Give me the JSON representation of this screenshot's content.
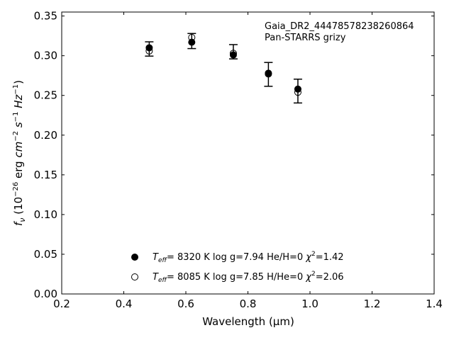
{
  "chart_data": {
    "type": "scatter",
    "title": "",
    "xlabel": "Wavelength (μm)",
    "ylabel": "f_ν (10^-26 erg cm^-2 s^-1 Hz^-1)",
    "xlim": [
      0.2,
      1.4
    ],
    "ylim": [
      0.0,
      0.355
    ],
    "xticks": [
      "0.2",
      "0.4",
      "0.6",
      "0.8",
      "1.0",
      "1.2",
      "1.4"
    ],
    "yticks": [
      "0.00",
      "0.05",
      "0.10",
      "0.15",
      "0.20",
      "0.25",
      "0.30",
      "0.35"
    ],
    "grid": false,
    "annotations": [
      "Gaia_DR2_4447857823826086​4",
      "Pan-STARRS grizy"
    ],
    "observed": {
      "x": [
        0.482,
        0.619,
        0.753,
        0.866,
        0.961
      ],
      "y": [
        0.3085,
        0.3185,
        0.305,
        0.2765,
        0.2555
      ],
      "yerr": [
        0.009,
        0.0095,
        0.009,
        0.015,
        0.015
      ]
    },
    "series": [
      {
        "name": "T_eff= 8320 K log g=7.94 He/H=0 χ²=1.42",
        "marker": "filled-circle",
        "x": [
          0.482,
          0.619,
          0.753,
          0.866,
          0.961
        ],
        "y": [
          0.31,
          0.317,
          0.301,
          0.278,
          0.258
        ]
      },
      {
        "name": "T_eff= 8085 K log g=7.85 H/He=0 χ²=2.06",
        "marker": "open-circle",
        "x": [
          0.482,
          0.619,
          0.753,
          0.866,
          0.961
        ],
        "y": [
          0.306,
          0.323,
          0.303,
          0.277,
          0.254
        ]
      }
    ],
    "legend_placement": "lower-center"
  }
}
